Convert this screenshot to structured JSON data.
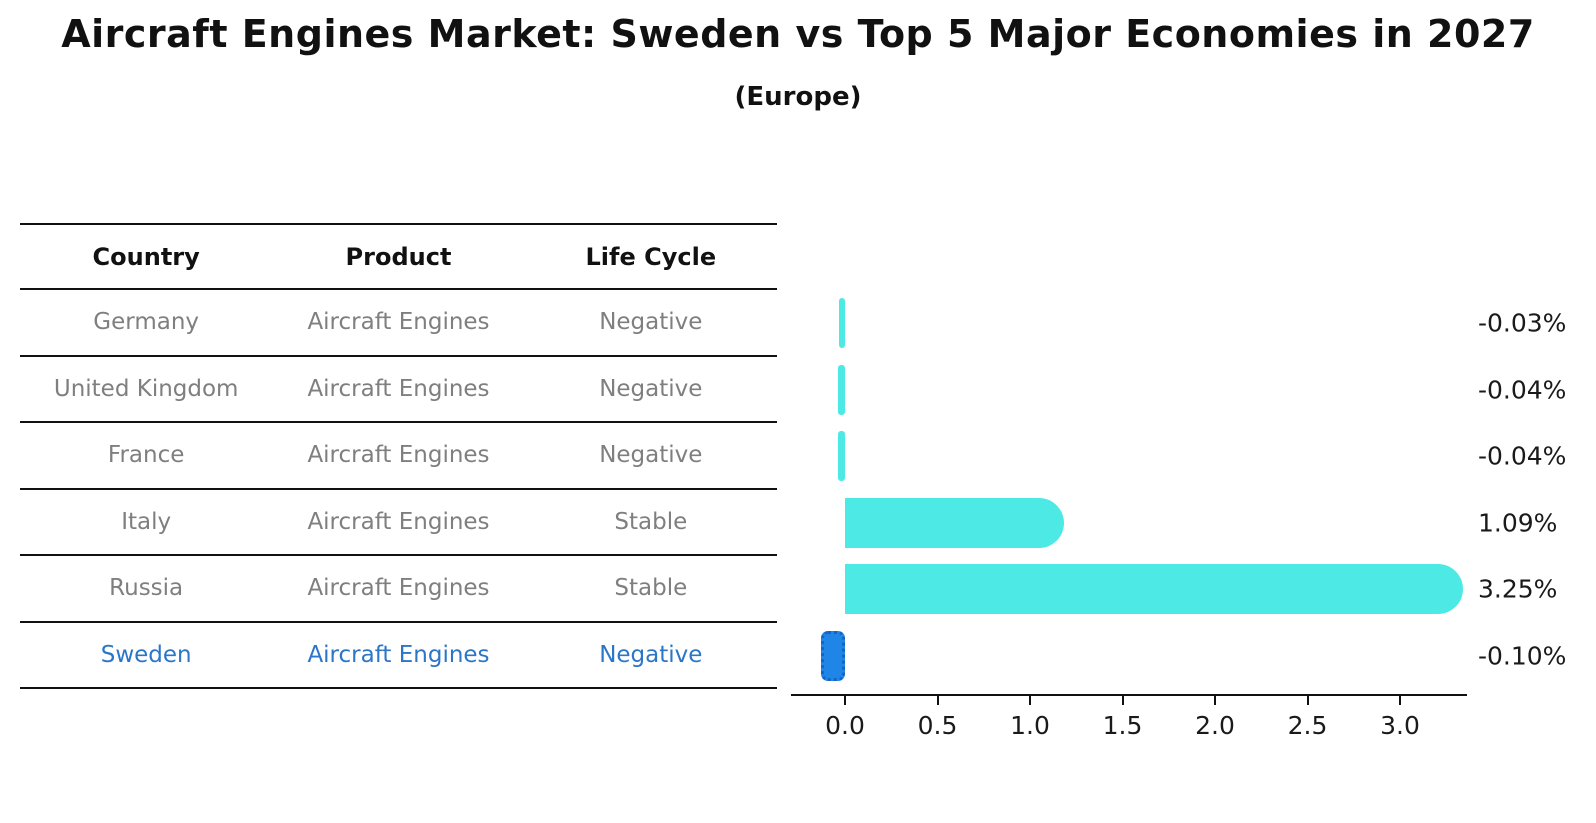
{
  "header": {
    "title": "Aircraft Engines Market: Sweden vs Top 5 Major Economies in 2027",
    "subtitle": "(Europe)"
  },
  "table": {
    "columns": [
      "Country",
      "Product",
      "Life Cycle"
    ],
    "rows": [
      {
        "country": "Germany",
        "product": "Aircraft Engines",
        "life_cycle": "Negative",
        "highlight": false
      },
      {
        "country": "United Kingdom",
        "product": "Aircraft Engines",
        "life_cycle": "Negative",
        "highlight": false
      },
      {
        "country": "France",
        "product": "Aircraft Engines",
        "life_cycle": "Negative",
        "highlight": false
      },
      {
        "country": "Italy",
        "product": "Aircraft Engines",
        "life_cycle": "Stable",
        "highlight": false
      },
      {
        "country": "Russia",
        "product": "Aircraft Engines",
        "life_cycle": "Stable",
        "highlight": false
      },
      {
        "country": "Sweden",
        "product": "Aircraft Engines",
        "life_cycle": "Negative",
        "highlight": true
      }
    ]
  },
  "chart_data": {
    "type": "bar",
    "orientation": "horizontal",
    "title": "Aircraft Engines Market: Sweden vs Top 5 Major Economies in 2027",
    "subtitle": "(Europe)",
    "categories": [
      "Germany",
      "United Kingdom",
      "France",
      "Italy",
      "Russia",
      "Sweden"
    ],
    "values": [
      -0.03,
      -0.04,
      -0.04,
      1.09,
      3.25,
      -0.1
    ],
    "value_labels": [
      "-0.03%",
      "-0.04%",
      "-0.04%",
      "1.09%",
      "3.25%",
      "-0.10%"
    ],
    "unit": "%",
    "x_ticks": [
      "0.0",
      "0.5",
      "1.0",
      "1.5",
      "2.0",
      "2.5",
      "3.0"
    ],
    "x_tick_values": [
      0,
      0.5,
      1,
      1.5,
      2,
      2.5,
      3
    ],
    "xlim": [
      -0.3,
      3.4
    ],
    "grid": false,
    "legend": false,
    "highlight_index": 5,
    "colors": {
      "default_bar": "#4de9e4",
      "highlight_bar": "#1f86e8",
      "highlight_border": "#1464c8",
      "highlight_text": "#2b76c9",
      "body_text": "#7f7f7f",
      "heading_text": "#111111"
    }
  }
}
